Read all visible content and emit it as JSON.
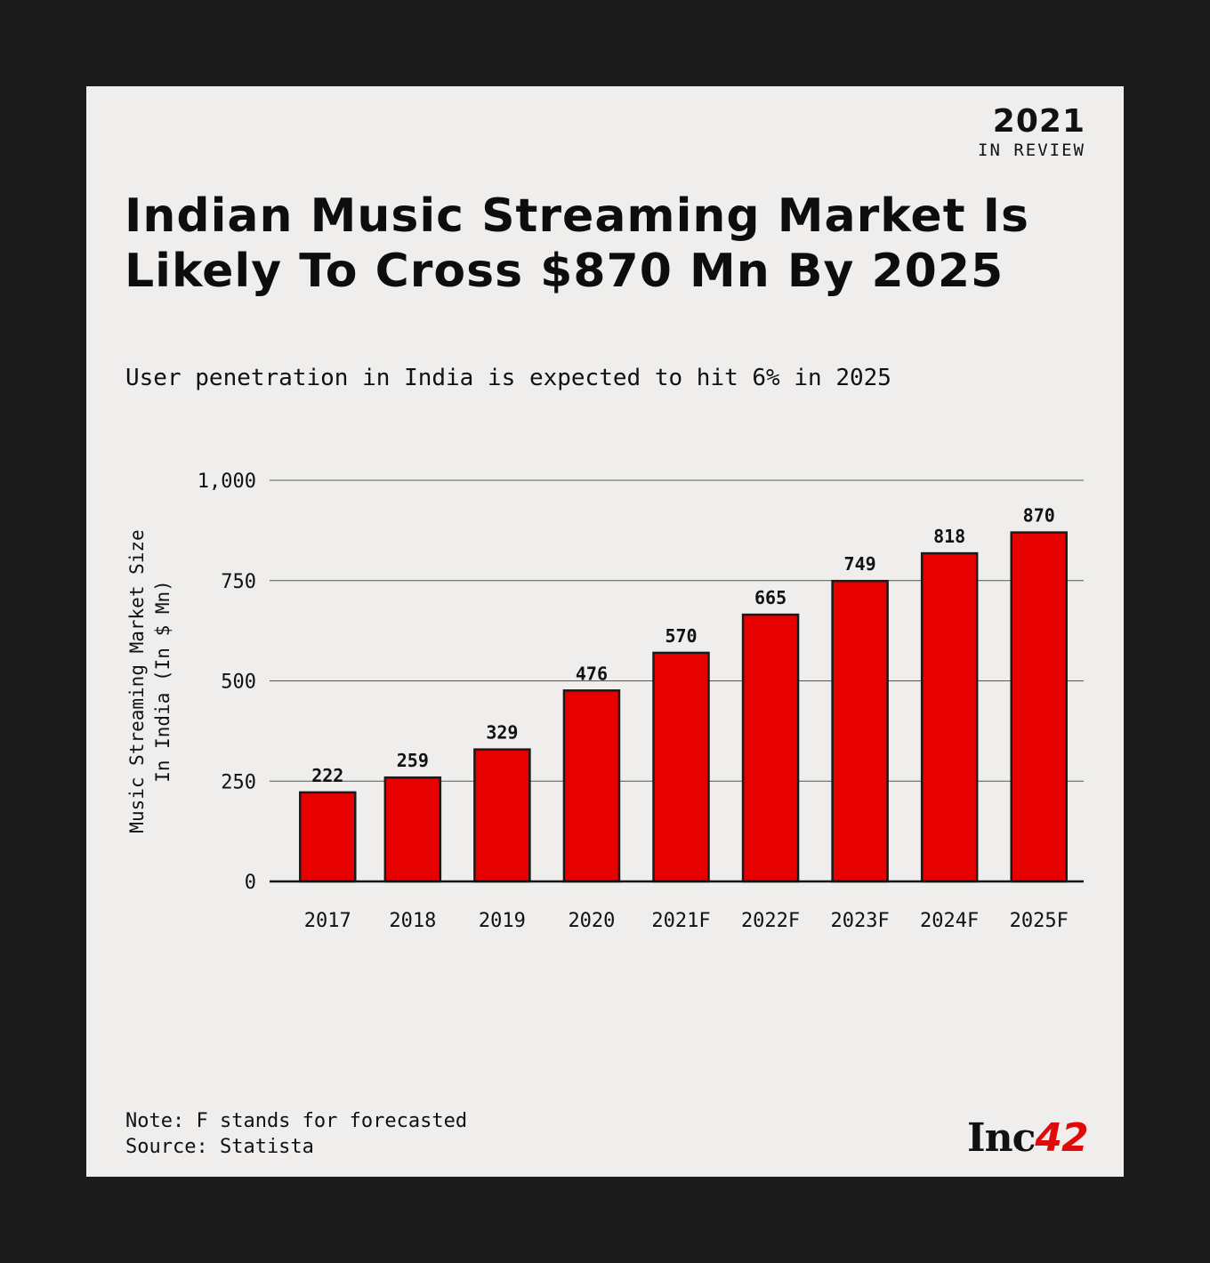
{
  "badge": {
    "year": "2021",
    "subtitle": "IN REVIEW"
  },
  "title": "Indian Music Streaming Market Is Likely To Cross $870 Mn By 2025",
  "subtitle": "User penetration in India is expected to hit 6% in 2025",
  "notes": [
    "Note: F stands for forecasted",
    "Source: Statista"
  ],
  "logo": {
    "text": "Inc",
    "number": "42"
  },
  "colors": {
    "bar": "#e60000",
    "background": "#efeeed",
    "frame": "#1b1b1b"
  },
  "chart_data": {
    "type": "bar",
    "title": "Indian Music Streaming Market Is Likely To Cross $870 Mn By 2025",
    "xlabel": "",
    "ylabel": [
      "Music Streaming Market Size",
      "In India (In $ Mn)"
    ],
    "categories": [
      "2017",
      "2018",
      "2019",
      "2020",
      "2021F",
      "2022F",
      "2023F",
      "2024F",
      "2025F"
    ],
    "values": [
      222,
      259,
      329,
      476,
      570,
      665,
      749,
      818,
      870
    ],
    "value_labels": [
      "222",
      "259",
      "329",
      "476",
      "570",
      "665",
      "749",
      "818",
      "870"
    ],
    "ylim": [
      0,
      1000
    ],
    "yticks": [
      0,
      250,
      500,
      750,
      1000
    ],
    "ytick_labels": [
      "0",
      "250",
      "500",
      "750",
      "1,000"
    ],
    "grid": true
  }
}
